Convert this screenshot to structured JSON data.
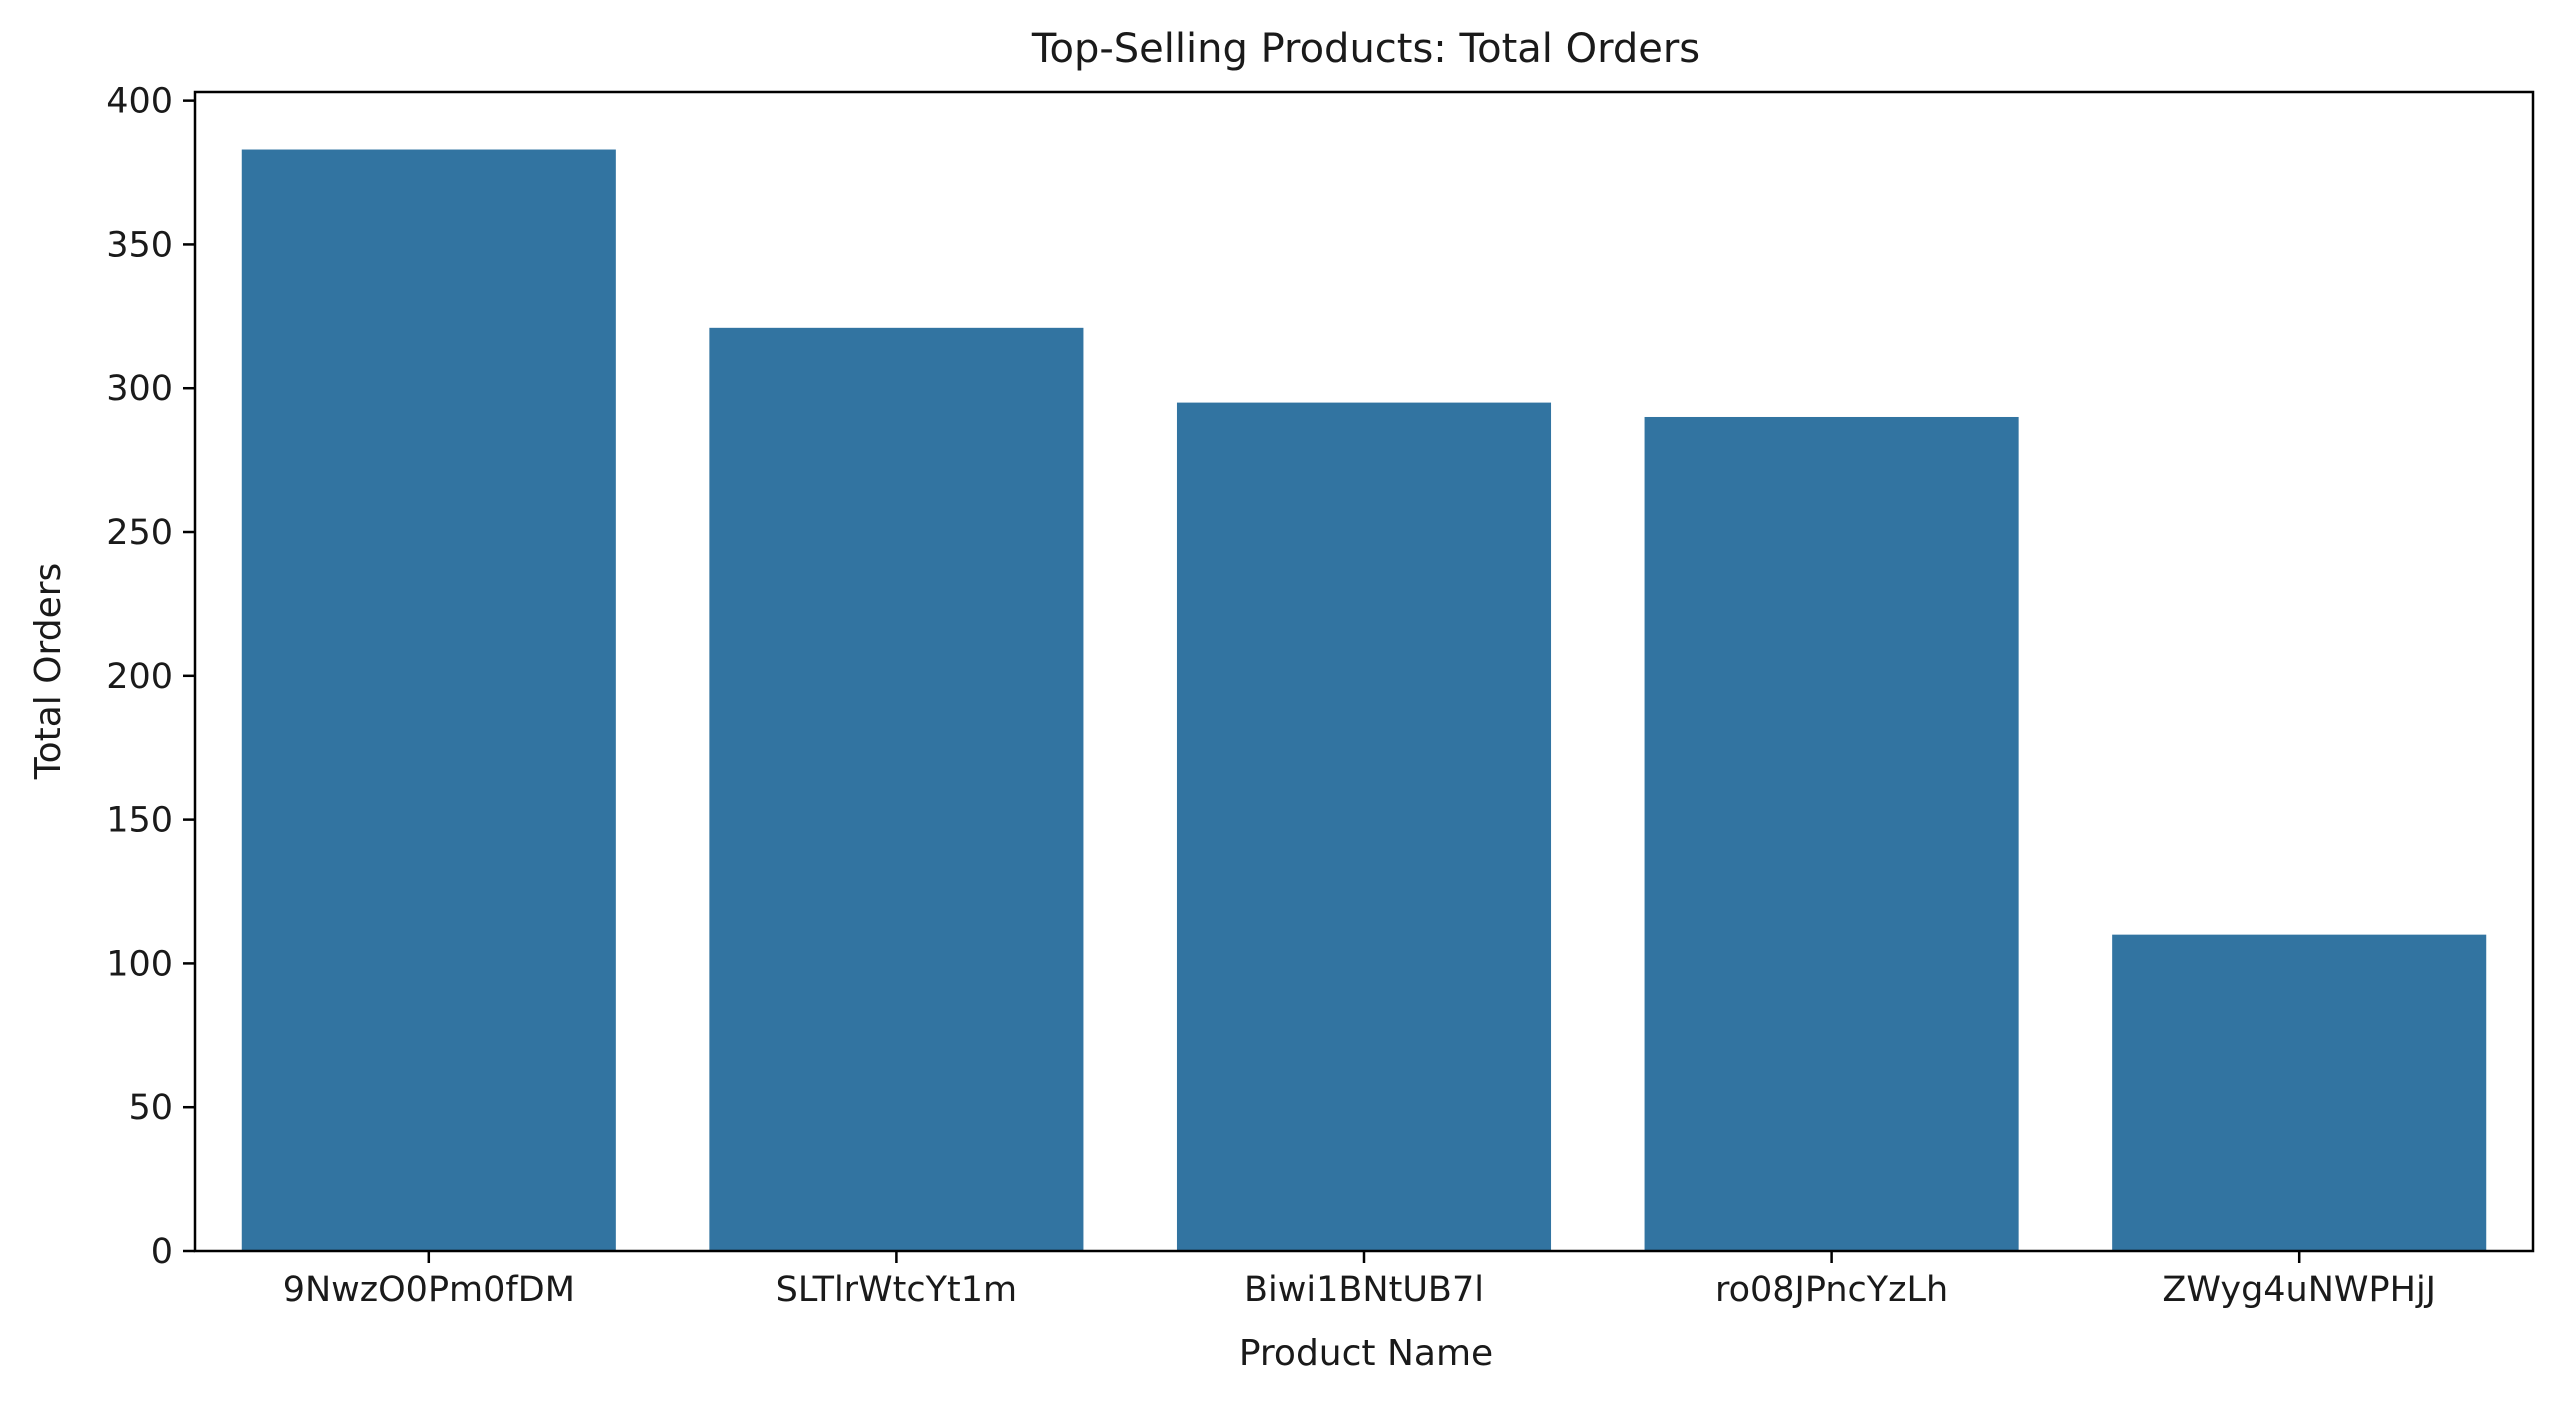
{
  "chart_data": {
    "type": "bar",
    "title": "Top-Selling Products: Total Orders",
    "xlabel": "Product Name",
    "ylabel": "Total Orders",
    "categories": [
      "9NwzO0Pm0fDM",
      "SLTlrWtcYt1m",
      "Biwi1BNtUB7l",
      "ro08JPncYzLh",
      "ZWyg4uNWPHjJ"
    ],
    "values": [
      383,
      321,
      295,
      290,
      110
    ],
    "ylim": [
      0,
      403
    ],
    "yticks": [
      0,
      50,
      100,
      150,
      200,
      250,
      300,
      350,
      400
    ],
    "grid": false,
    "legend": "none",
    "bar_color": "#3274a1"
  }
}
